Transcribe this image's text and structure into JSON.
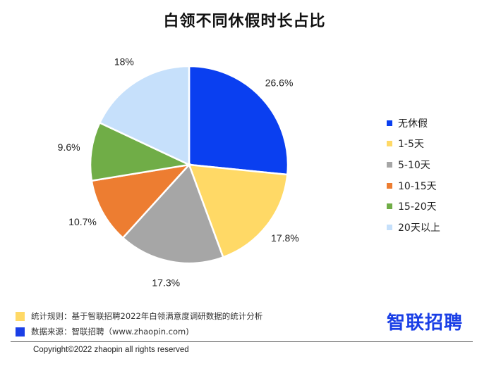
{
  "chart_data": {
    "type": "pie",
    "title": "白领不同休假时长占比",
    "categories": [
      "无休假",
      "1-5天",
      "5-10天",
      "10-15天",
      "15-20天",
      "20天以上"
    ],
    "values": [
      26.6,
      17.8,
      17.3,
      10.7,
      9.6,
      18
    ],
    "value_labels": [
      "26.6%",
      "17.8%",
      "17.3%",
      "10.7%",
      "9.6%",
      "18%"
    ],
    "colors": [
      "#0a3ff0",
      "#ffd966",
      "#a6a6a6",
      "#ed7d31",
      "#70ad47",
      "#c6e0fb"
    ],
    "legend_position": "right",
    "start": "12 o'clock, clockwise"
  },
  "notes": [
    {
      "text": "统计规则：基于智联招聘2022年白领满意度调研数据的统计分析",
      "color": "#ffd966"
    },
    {
      "text": "数据来源：智联招聘（www.zhaopin.com)",
      "color": "#1a3fe6"
    }
  ],
  "brand": "智联招聘",
  "copyright": "Copyright©2022 zhaopin all rights reserved"
}
